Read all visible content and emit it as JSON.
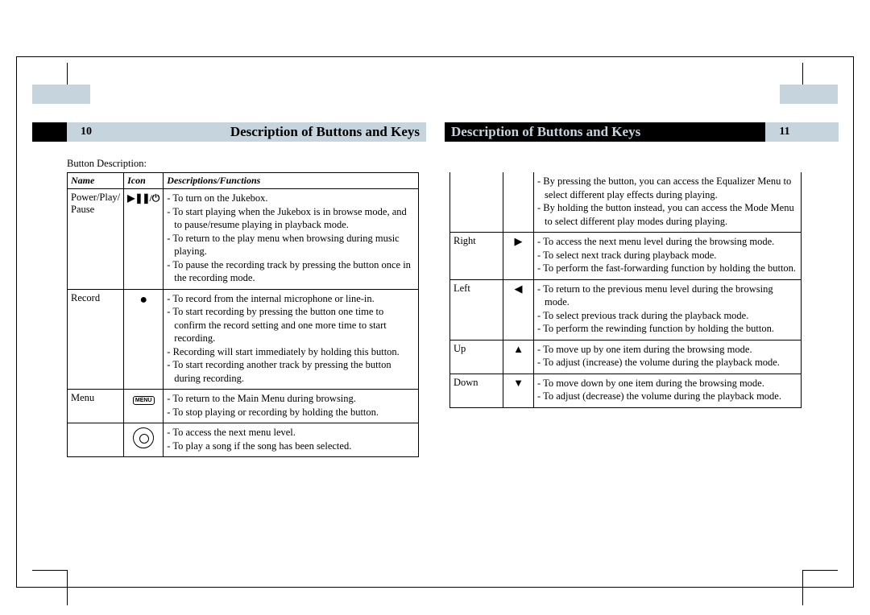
{
  "colors": {
    "band_grey": "#c6d4de",
    "band_black": "#000000",
    "text_black": "#000000",
    "background": "#ffffff"
  },
  "left_page": {
    "number": "10",
    "title": "Description of Buttons and Keys",
    "caption": "Button Description:"
  },
  "right_page": {
    "number": "11",
    "title": "Description of Buttons and Keys"
  },
  "table_headers": {
    "name": "Name",
    "icon": "Icon",
    "desc": "Descriptions/Functions"
  },
  "left_rows": [
    {
      "name": "Power/Play/ Pause",
      "icon_type": "power-play-pause",
      "functions": [
        "To turn on the Jukebox.",
        "To start playing when the Jukebox is in browse mode, and to pause/resume playing in playback mode.",
        "To return to the play menu when browsing during music playing.",
        "To pause the recording track by pressing the button once in the recording mode."
      ]
    },
    {
      "name": "Record",
      "icon_type": "record",
      "functions": [
        "To record from the internal microphone or line-in.",
        "To start recording by pressing the button one time to confirm the record setting and one more time to start recording.",
        "Recording will start immediately by holding this button.",
        "To start recording another track by pressing the button during recording."
      ]
    },
    {
      "name": "Menu",
      "icon_type": "menu",
      "functions": [
        "To return to the Main Menu during browsing.",
        "To stop playing or recording by holding the button."
      ]
    },
    {
      "name": "",
      "icon_type": "jog",
      "functions": [
        "To access the next menu level.",
        "To play a song  if the song  has been selected."
      ]
    }
  ],
  "right_rows": [
    {
      "name": "",
      "icon_type": "none",
      "functions": [
        "By pressing the button, you can access the Equalizer Menu to select different play effects during  playing.",
        "By holding the button instead, you can access the Mode Menu to select different play modes during  playing."
      ]
    },
    {
      "name": "Right",
      "icon_type": "right",
      "functions": [
        "To access the next menu level during the browsing mode.",
        "To select next track during playback mode.",
        "To perform the fast-forwarding function by holding the button."
      ]
    },
    {
      "name": "Left",
      "icon_type": "left",
      "functions": [
        "To return to the previous menu level during the browsing mode.",
        "To select previous track during the playback mode.",
        "To perform the rewinding function by holding the button."
      ]
    },
    {
      "name": "Up",
      "icon_type": "up",
      "functions": [
        "To move up by one item during the browsing mode.",
        "To adjust (increase) the volume during the playback mode."
      ]
    },
    {
      "name": "Down",
      "icon_type": "down",
      "functions": [
        "To move down by one item during the browsing mode.",
        "To adjust (decrease) the volume during the playback mode."
      ]
    }
  ]
}
